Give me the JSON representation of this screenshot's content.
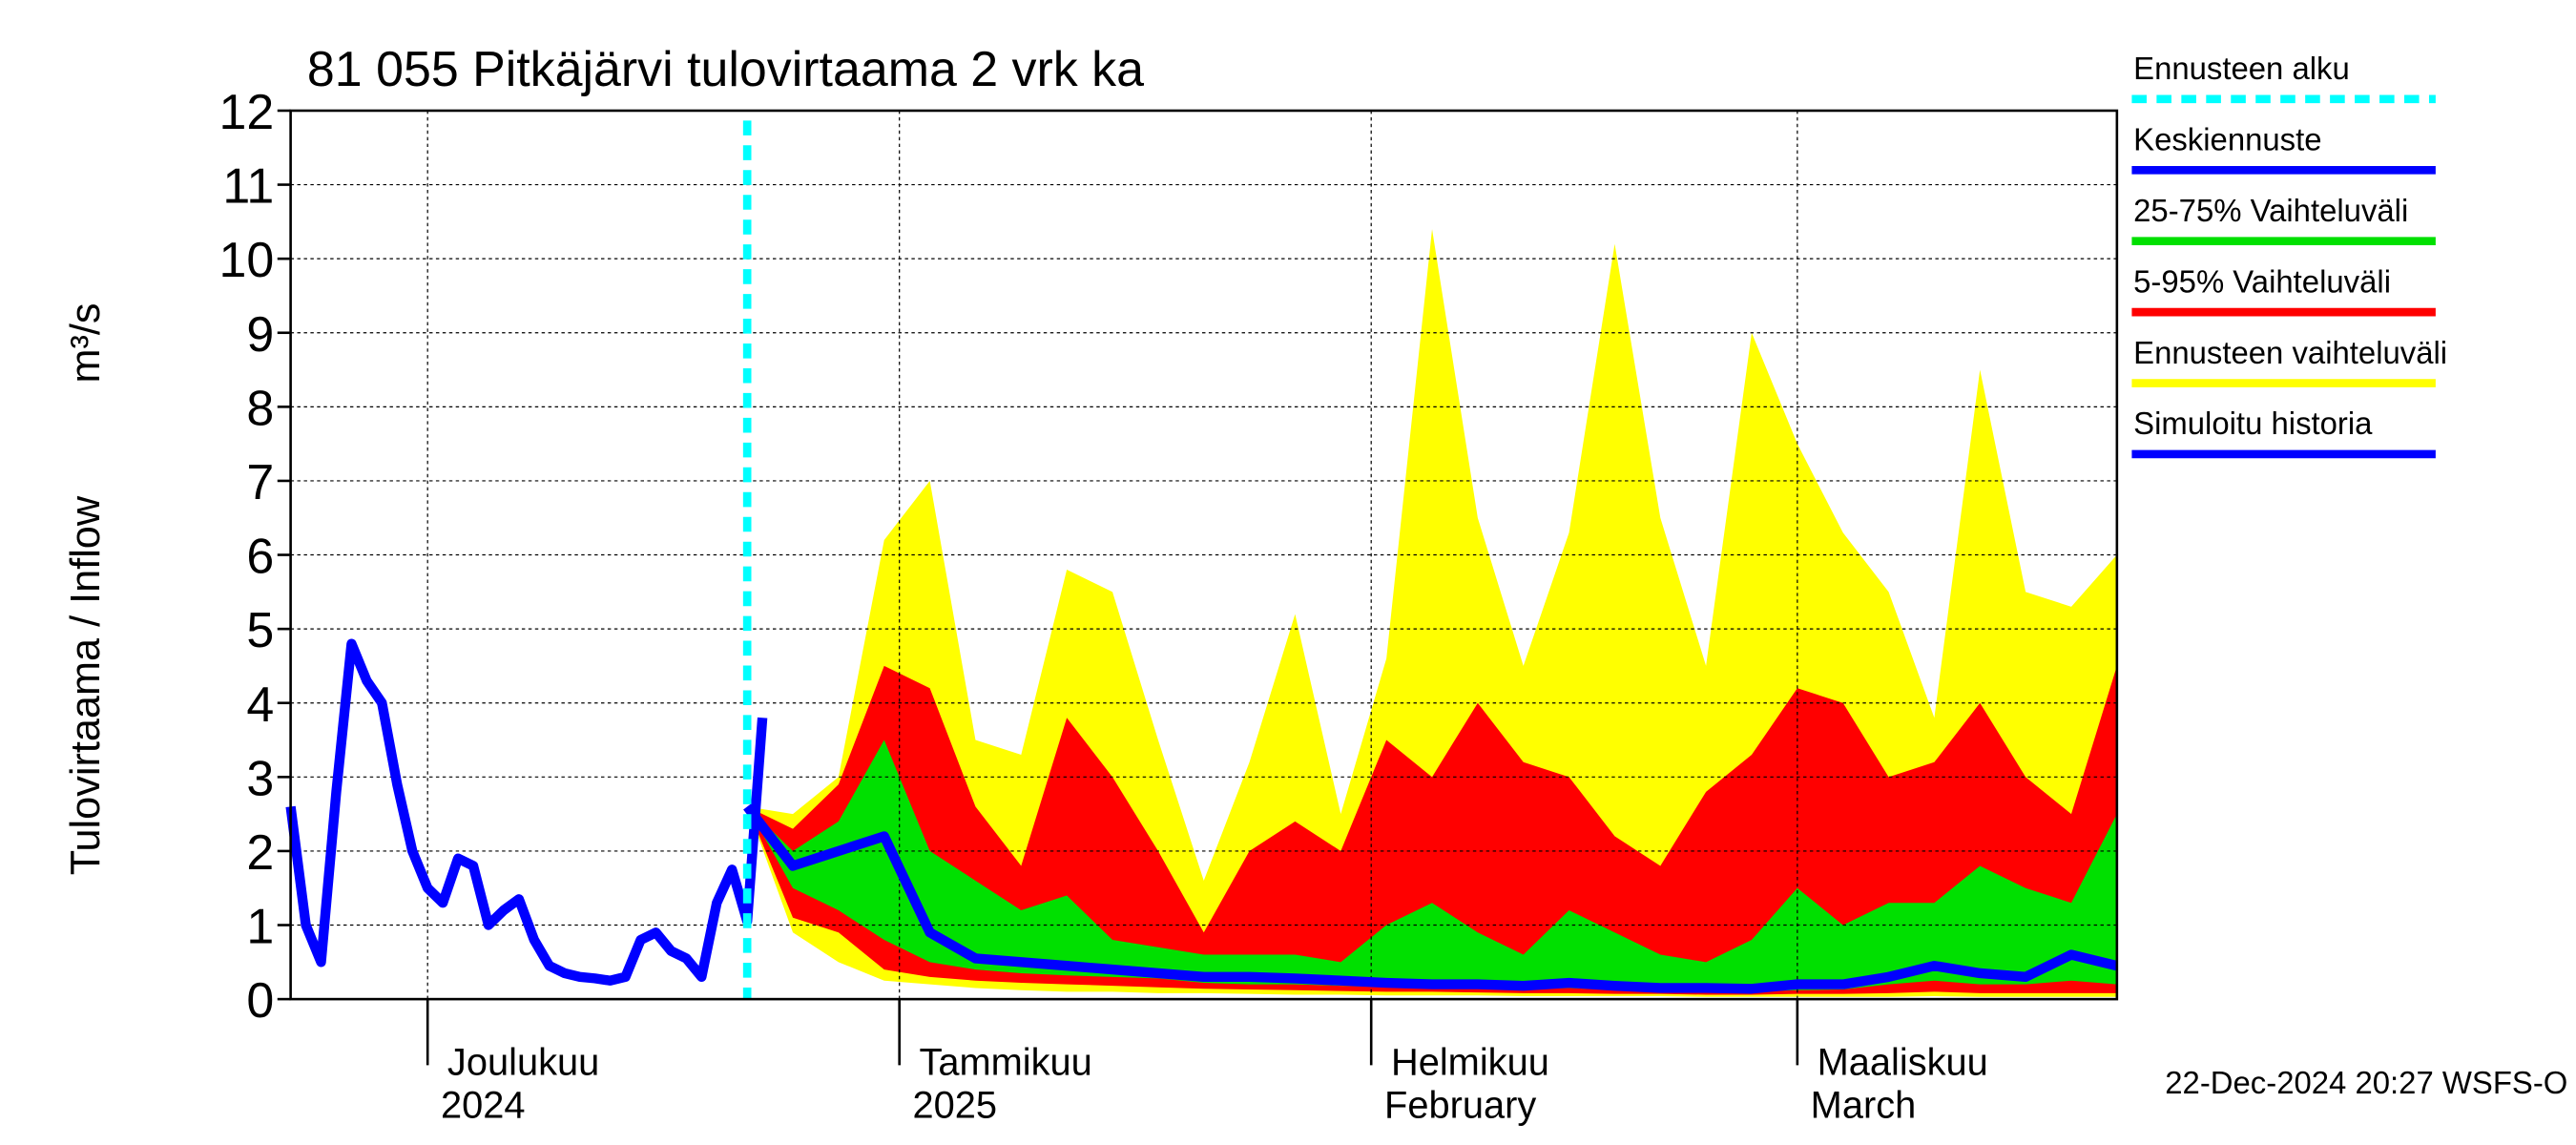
{
  "chart_data": {
    "type": "forecast-band",
    "title": "81 055 Pitkäjärvi tulovirtaama 2 vrk ka",
    "ylabel": "Tulovirtaama / Inflow",
    "yunit": "m³/s",
    "timestamp": "22-Dec-2024 20:27 WSFS-O",
    "ylim": [
      0,
      12
    ],
    "yticks": [
      0,
      1,
      2,
      3,
      4,
      5,
      6,
      7,
      8,
      9,
      10,
      11,
      12
    ],
    "xlim": [
      "2024-11-22",
      "2025-03-22"
    ],
    "xticks": [
      {
        "value": "2024-12-01",
        "label": "Joulukuu",
        "sublabel": "2024"
      },
      {
        "value": "2025-01-01",
        "label": "Tammikuu",
        "sublabel": "2025"
      },
      {
        "value": "2025-02-01",
        "label": "Helmikuu",
        "sublabel": "February"
      },
      {
        "value": "2025-03-01",
        "label": "Maaliskuu",
        "sublabel": "March"
      }
    ],
    "grid": true,
    "forecast_start": {
      "name": "Ennusteen alku",
      "x": "2024-12-22",
      "color": "#00ffff"
    },
    "bands": [
      {
        "name": "Ennusteen vaihteluväli",
        "color": "#ffff00",
        "x": [
          "2024-12-22",
          "2024-12-25",
          "2024-12-28",
          "2024-12-31",
          "2025-01-03",
          "2025-01-06",
          "2025-01-09",
          "2025-01-12",
          "2025-01-15",
          "2025-01-18",
          "2025-01-21",
          "2025-01-24",
          "2025-01-27",
          "2025-01-30",
          "2025-02-02",
          "2025-02-05",
          "2025-02-08",
          "2025-02-11",
          "2025-02-14",
          "2025-02-17",
          "2025-02-20",
          "2025-02-23",
          "2025-02-26",
          "2025-03-01",
          "2025-03-04",
          "2025-03-07",
          "2025-03-10",
          "2025-03-13",
          "2025-03-16",
          "2025-03-19",
          "2025-03-22"
        ],
        "high": [
          2.6,
          2.5,
          3.0,
          6.2,
          7.0,
          3.5,
          3.3,
          5.8,
          5.5,
          3.5,
          1.6,
          3.2,
          5.2,
          2.5,
          4.6,
          10.4,
          6.5,
          4.5,
          6.3,
          10.2,
          6.5,
          4.5,
          9.0,
          7.5,
          6.3,
          5.5,
          3.8,
          8.5,
          5.5,
          5.3,
          6.0
        ],
        "low": [
          2.6,
          0.9,
          0.5,
          0.25,
          0.2,
          0.15,
          0.12,
          0.1,
          0.1,
          0.08,
          0.08,
          0.07,
          0.06,
          0.06,
          0.05,
          0.05,
          0.05,
          0.04,
          0.04,
          0.04,
          0.04,
          0.03,
          0.03,
          0.03,
          0.03,
          0.03,
          0.04,
          0.03,
          0.03,
          0.03,
          0.03
        ]
      },
      {
        "name": "5-95% Vaihteluväli",
        "color": "#ff0000",
        "x": [
          "2024-12-22",
          "2024-12-25",
          "2024-12-28",
          "2024-12-31",
          "2025-01-03",
          "2025-01-06",
          "2025-01-09",
          "2025-01-12",
          "2025-01-15",
          "2025-01-18",
          "2025-01-21",
          "2025-01-24",
          "2025-01-27",
          "2025-01-30",
          "2025-02-02",
          "2025-02-05",
          "2025-02-08",
          "2025-02-11",
          "2025-02-14",
          "2025-02-17",
          "2025-02-20",
          "2025-02-23",
          "2025-02-26",
          "2025-03-01",
          "2025-03-04",
          "2025-03-07",
          "2025-03-10",
          "2025-03-13",
          "2025-03-16",
          "2025-03-19",
          "2025-03-22"
        ],
        "high": [
          2.6,
          2.3,
          2.9,
          4.5,
          4.2,
          2.6,
          1.8,
          3.8,
          3.0,
          2.0,
          0.9,
          2.0,
          2.4,
          2.0,
          3.5,
          3.0,
          4.0,
          3.2,
          3.0,
          2.2,
          1.8,
          2.8,
          3.3,
          4.2,
          4.0,
          3.0,
          3.2,
          4.0,
          3.0,
          2.5,
          4.5
        ],
        "low": [
          2.6,
          1.1,
          0.9,
          0.4,
          0.3,
          0.25,
          0.22,
          0.2,
          0.18,
          0.16,
          0.14,
          0.13,
          0.12,
          0.11,
          0.1,
          0.1,
          0.09,
          0.08,
          0.08,
          0.07,
          0.07,
          0.06,
          0.06,
          0.07,
          0.07,
          0.08,
          0.1,
          0.08,
          0.08,
          0.08,
          0.08
        ]
      },
      {
        "name": "25-75% Vaihteluväli",
        "color": "#00e000",
        "x": [
          "2024-12-22",
          "2024-12-25",
          "2024-12-28",
          "2024-12-31",
          "2025-01-03",
          "2025-01-06",
          "2025-01-09",
          "2025-01-12",
          "2025-01-15",
          "2025-01-18",
          "2025-01-21",
          "2025-01-24",
          "2025-01-27",
          "2025-01-30",
          "2025-02-02",
          "2025-02-05",
          "2025-02-08",
          "2025-02-11",
          "2025-02-14",
          "2025-02-17",
          "2025-02-20",
          "2025-02-23",
          "2025-02-26",
          "2025-03-01",
          "2025-03-04",
          "2025-03-07",
          "2025-03-10",
          "2025-03-13",
          "2025-03-16",
          "2025-03-19",
          "2025-03-22"
        ],
        "high": [
          2.6,
          2.0,
          2.4,
          3.5,
          2.0,
          1.6,
          1.2,
          1.4,
          0.8,
          0.7,
          0.6,
          0.6,
          0.6,
          0.5,
          1.0,
          1.3,
          0.9,
          0.6,
          1.2,
          0.9,
          0.6,
          0.5,
          0.8,
          1.5,
          1.0,
          1.3,
          1.3,
          1.8,
          1.5,
          1.3,
          2.5
        ],
        "low": [
          2.6,
          1.5,
          1.2,
          0.8,
          0.5,
          0.4,
          0.35,
          0.32,
          0.3,
          0.28,
          0.22,
          0.2,
          0.2,
          0.18,
          0.16,
          0.15,
          0.14,
          0.13,
          0.15,
          0.12,
          0.11,
          0.1,
          0.1,
          0.12,
          0.13,
          0.2,
          0.25,
          0.2,
          0.2,
          0.25,
          0.2
        ]
      }
    ],
    "series": [
      {
        "name": "Keskiennuste",
        "color": "#0000ff",
        "x": [
          "2024-12-22",
          "2024-12-25",
          "2024-12-28",
          "2024-12-31",
          "2025-01-03",
          "2025-01-06",
          "2025-01-09",
          "2025-01-12",
          "2025-01-15",
          "2025-01-18",
          "2025-01-21",
          "2025-01-24",
          "2025-01-27",
          "2025-01-30",
          "2025-02-02",
          "2025-02-05",
          "2025-02-08",
          "2025-02-11",
          "2025-02-14",
          "2025-02-17",
          "2025-02-20",
          "2025-02-23",
          "2025-02-26",
          "2025-03-01",
          "2025-03-04",
          "2025-03-07",
          "2025-03-10",
          "2025-03-13",
          "2025-03-16",
          "2025-03-19",
          "2025-03-22"
        ],
        "values": [
          2.6,
          1.8,
          2.0,
          2.2,
          0.9,
          0.55,
          0.5,
          0.45,
          0.4,
          0.35,
          0.3,
          0.3,
          0.28,
          0.25,
          0.22,
          0.2,
          0.2,
          0.18,
          0.22,
          0.18,
          0.15,
          0.15,
          0.14,
          0.2,
          0.2,
          0.3,
          0.45,
          0.35,
          0.3,
          0.6,
          0.45
        ]
      },
      {
        "name": "Simuloitu historia",
        "color": "#0000ff",
        "x": [
          "2024-11-22",
          "2024-11-23",
          "2024-11-24",
          "2024-11-25",
          "2024-11-26",
          "2024-11-27",
          "2024-11-28",
          "2024-11-29",
          "2024-11-30",
          "2024-12-01",
          "2024-12-02",
          "2024-12-03",
          "2024-12-04",
          "2024-12-05",
          "2024-12-06",
          "2024-12-07",
          "2024-12-08",
          "2024-12-09",
          "2024-12-10",
          "2024-12-11",
          "2024-12-12",
          "2024-12-13",
          "2024-12-14",
          "2024-12-15",
          "2024-12-16",
          "2024-12-17",
          "2024-12-18",
          "2024-12-19",
          "2024-12-20",
          "2024-12-21",
          "2024-12-22",
          "2024-12-23"
        ],
        "values": [
          2.6,
          1.0,
          0.5,
          2.8,
          4.8,
          4.3,
          4.0,
          2.9,
          2.0,
          1.5,
          1.3,
          1.9,
          1.8,
          1.0,
          1.2,
          1.35,
          0.8,
          0.45,
          0.35,
          0.3,
          0.28,
          0.25,
          0.3,
          0.8,
          0.9,
          0.65,
          0.55,
          0.3,
          1.3,
          1.75,
          1.05,
          3.8
        ]
      }
    ]
  }
}
